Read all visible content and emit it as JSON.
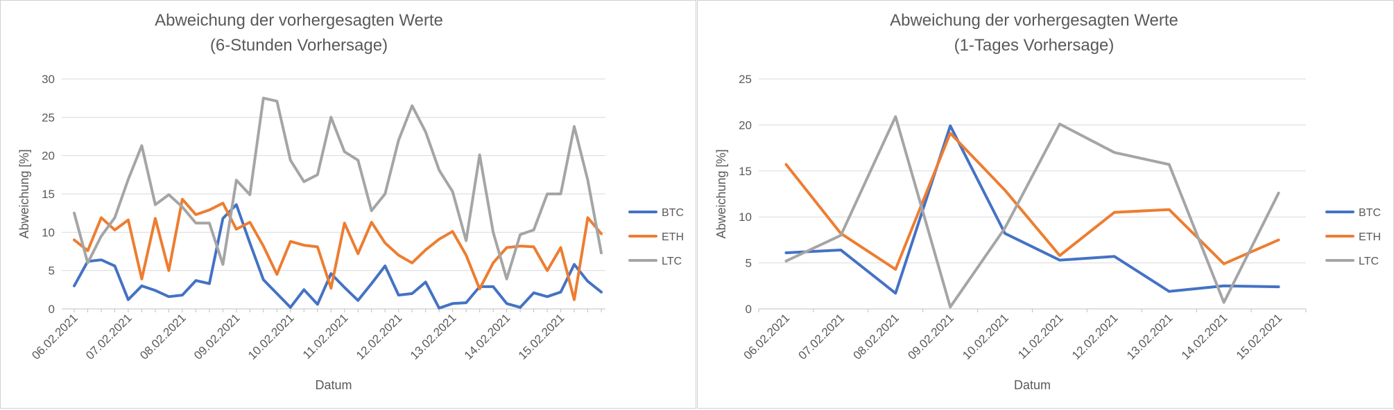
{
  "chart_data": [
    {
      "type": "line",
      "title": [
        "Abweichung der vorhergesagten Werte",
        "(6-Stunden Vorhersage)"
      ],
      "xlabel": "Datum",
      "ylabel": "Abweichung [%]",
      "ylim": [
        0,
        30
      ],
      "yticks": [
        0,
        5,
        10,
        15,
        20,
        25,
        30
      ],
      "grid": true,
      "legend_position": "right",
      "x_tick_labels": [
        "06.02.2021",
        "07.02.2021",
        "08.02.2021",
        "09.02.2021",
        "10.02.2021",
        "11.02.2021",
        "12.02.2021",
        "13.02.2021",
        "14.02.2021",
        "15.02.2021"
      ],
      "series": [
        {
          "name": "BTC",
          "color": "#4472c4",
          "values": [
            3.0,
            6.2,
            6.4,
            5.6,
            1.2,
            3.0,
            2.4,
            1.6,
            1.8,
            3.7,
            3.3,
            11.8,
            13.6,
            8.6,
            3.8,
            2.0,
            0.2,
            2.5,
            0.6,
            4.6,
            2.8,
            1.1,
            3.3,
            5.6,
            1.8,
            2.0,
            3.5,
            0.1,
            0.7,
            0.8,
            2.9,
            2.9,
            0.7,
            0.2,
            2.1,
            1.6,
            2.2,
            5.8,
            3.6,
            2.2
          ]
        },
        {
          "name": "ETH",
          "color": "#ed7d31",
          "values": [
            9.0,
            7.6,
            11.9,
            10.3,
            11.6,
            3.9,
            11.8,
            5.0,
            14.3,
            12.3,
            12.9,
            13.8,
            10.4,
            11.3,
            8.2,
            4.5,
            8.8,
            8.3,
            8.1,
            2.7,
            11.2,
            7.2,
            11.3,
            8.6,
            7.0,
            6.0,
            7.7,
            9.1,
            10.1,
            7.0,
            2.6,
            6.0,
            8.0,
            8.2,
            8.1,
            5.0,
            8.0,
            1.2,
            11.9,
            9.8
          ]
        },
        {
          "name": "LTC",
          "color": "#a5a5a5",
          "values": [
            12.5,
            6.0,
            9.5,
            11.9,
            16.9,
            21.3,
            13.6,
            14.9,
            13.3,
            11.2,
            11.2,
            5.8,
            16.8,
            14.9,
            27.5,
            27.1,
            19.4,
            16.6,
            17.5,
            25.0,
            20.5,
            19.4,
            12.8,
            15.0,
            22.0,
            26.5,
            23.1,
            18.1,
            15.3,
            8.9,
            20.1,
            10.0,
            3.9,
            9.7,
            10.3,
            15.0,
            15.0,
            23.8,
            16.8,
            7.3
          ]
        }
      ]
    },
    {
      "type": "line",
      "title": [
        "Abweichung der vorhergesagten Werte",
        "(1-Tages Vorhersage)"
      ],
      "xlabel": "Datum",
      "ylabel": "Abweichung [%]",
      "ylim": [
        0,
        25
      ],
      "yticks": [
        0,
        5,
        10,
        15,
        20,
        25
      ],
      "grid": true,
      "legend_position": "right",
      "x_tick_labels": [
        "06.02.2021",
        "07.02.2021",
        "08.02.2021",
        "09.02.2021",
        "10.02.2021",
        "11.02.2021",
        "12.02.2021",
        "13.02.2021",
        "14.02.2021",
        "15.02.2021"
      ],
      "series": [
        {
          "name": "BTC",
          "color": "#4472c4",
          "values": [
            6.1,
            6.4,
            1.7,
            19.9,
            8.2,
            5.3,
            5.7,
            1.9,
            2.5,
            2.4
          ]
        },
        {
          "name": "ETH",
          "color": "#ed7d31",
          "values": [
            15.7,
            8.2,
            4.3,
            19.1,
            12.9,
            5.8,
            10.5,
            10.8,
            4.9,
            7.5
          ]
        },
        {
          "name": "LTC",
          "color": "#a5a5a5",
          "values": [
            5.2,
            8.0,
            20.9,
            0.2,
            8.8,
            20.1,
            17.0,
            15.7,
            0.7,
            12.6
          ]
        }
      ]
    }
  ]
}
